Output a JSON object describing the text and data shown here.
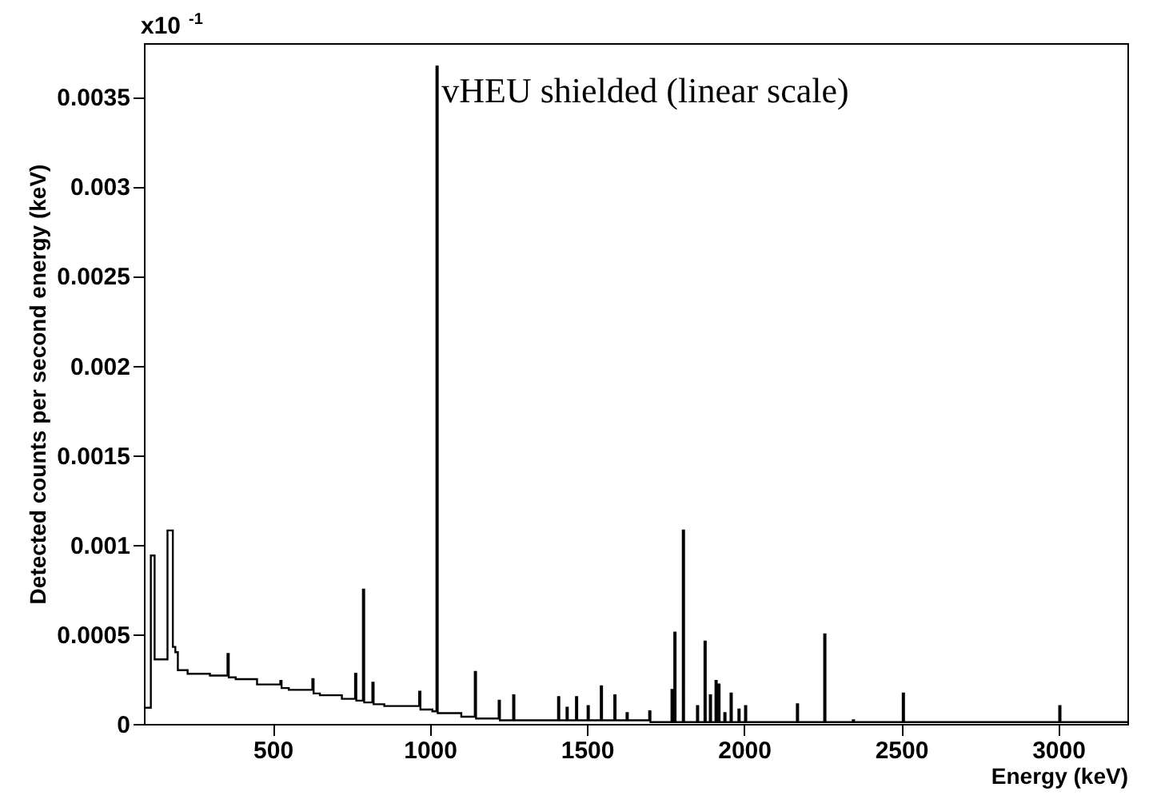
{
  "chart_data": {
    "type": "step",
    "title": "vHEU shielded (linear scale)",
    "xlabel": "Energy (keV)",
    "ylabel": "Detected counts per second energy (keV)",
    "annotations": [
      "x10$^{-1}$"
    ],
    "xlim": [
      90,
      3220
    ],
    "xticks": [
      500,
      1000,
      1500,
      2000,
      2500,
      3000
    ],
    "ylim": [
      0,
      0.0038
    ],
    "yticks": [
      0,
      0.0005,
      0.001,
      0.0015,
      0.002,
      0.0025,
      0.003,
      0.0035
    ],
    "grid": false,
    "series": [
      {
        "color": "#000000",
        "x": [
          94,
          112,
          124,
          165,
          182,
          190,
          198,
          229,
          300,
          356,
          360,
          382,
          450,
          524,
          528,
          551,
          626,
          630,
          650,
          720,
          762,
          766,
          787,
          791,
          817,
          821,
          855,
          966,
          970,
          1008,
          1021,
          1025,
          1100,
          1143,
          1147,
          1219,
          1223,
          1265,
          1269,
          1408,
          1412,
          1435,
          1439,
          1465,
          1469,
          1502,
          1506,
          1544,
          1548,
          1587,
          1591,
          1626,
          1630,
          1698,
          1702,
          1769,
          1773,
          1778,
          1782,
          1805,
          1809,
          1850,
          1854,
          1874,
          1878,
          1891,
          1895,
          1909,
          1913,
          1918,
          1922,
          1937,
          1941,
          1957,
          1961,
          1982,
          1986,
          2003,
          2007,
          2168,
          2172,
          2255,
          2259,
          2346,
          2350,
          2505,
          2509,
          3003,
          3007,
          3220
        ],
        "values": [
          9e-05,
          0.00094,
          0.00036,
          0.00108,
          0.00043,
          0.0004,
          0.0003,
          0.00028,
          0.00027,
          0.00039,
          0.00026,
          0.00025,
          0.00022,
          0.00024,
          0.0002,
          0.00019,
          0.00025,
          0.00017,
          0.00016,
          0.00014,
          0.00028,
          0.00013,
          0.00075,
          0.00012,
          0.00023,
          0.00011,
          0.0001,
          0.00018,
          8e-05,
          7e-05,
          0.00367,
          6e-05,
          4e-05,
          0.00029,
          3e-05,
          0.00013,
          2e-05,
          0.00016,
          2e-05,
          0.00015,
          2e-05,
          9e-05,
          2e-05,
          0.00015,
          2e-05,
          0.0001,
          2e-05,
          0.00021,
          2e-05,
          0.00016,
          2e-05,
          6e-05,
          2e-05,
          7e-05,
          1e-05,
          0.00019,
          1e-05,
          0.00051,
          1e-05,
          0.00108,
          1e-05,
          0.0001,
          1e-05,
          0.00046,
          1e-05,
          0.00016,
          1e-05,
          0.00024,
          1e-05,
          0.00022,
          1e-05,
          6e-05,
          1e-05,
          0.00017,
          1e-05,
          8e-05,
          1e-05,
          0.0001,
          1e-05,
          0.00011,
          1e-05,
          0.0005,
          1e-05,
          2e-05,
          1e-05,
          0.00017,
          1e-05,
          0.0001,
          1e-05,
          1e-05
        ]
      }
    ]
  }
}
